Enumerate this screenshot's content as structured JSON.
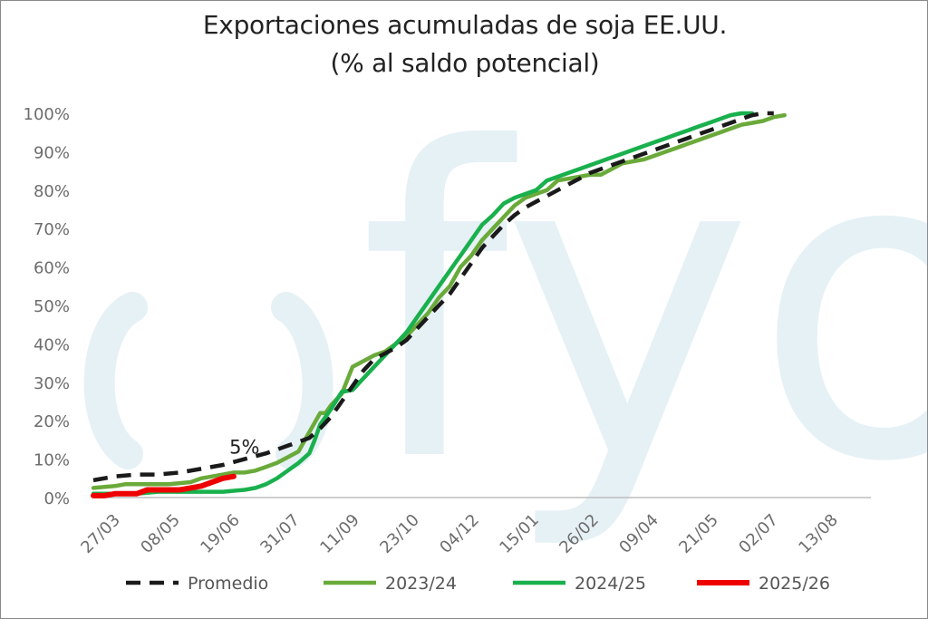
{
  "chart_data": {
    "type": "line",
    "title": "Exportaciones acumuladas de soja EE.UU.",
    "subtitle": "(% al saldo potencial)",
    "watermark": "fyo",
    "xlabel": "",
    "ylabel": "",
    "x_ticks": [
      "27/03",
      "08/05",
      "19/06",
      "31/07",
      "11/09",
      "23/10",
      "04/12",
      "15/01",
      "26/02",
      "09/04",
      "21/05",
      "02/07",
      "13/08"
    ],
    "ylim": [
      0,
      100
    ],
    "y_ticks": [
      "0%",
      "10%",
      "20%",
      "30%",
      "40%",
      "50%",
      "60%",
      "70%",
      "80%",
      "90%",
      "100%"
    ],
    "x_unit": "weeks",
    "x_range": [
      0,
      72
    ],
    "grid": false,
    "legend_position": "bottom",
    "annotations": [
      {
        "text": "5%",
        "x": 14,
        "y": 10.5
      }
    ],
    "series": [
      {
        "name": "Promedio",
        "color": "#1a1a1a",
        "style": "dashed",
        "points": [
          [
            0,
            4.5
          ],
          [
            2,
            5.5
          ],
          [
            4,
            6
          ],
          [
            6,
            6
          ],
          [
            8,
            6.5
          ],
          [
            10,
            7.5
          ],
          [
            12,
            8.5
          ],
          [
            14,
            10
          ],
          [
            16,
            11.5
          ],
          [
            18,
            13.5
          ],
          [
            20,
            15.5
          ],
          [
            21,
            18
          ],
          [
            22,
            21
          ],
          [
            23,
            25
          ],
          [
            24,
            29
          ],
          [
            25,
            33
          ],
          [
            26,
            36
          ],
          [
            27,
            37.5
          ],
          [
            28,
            39
          ],
          [
            29,
            41
          ],
          [
            30,
            44
          ],
          [
            31,
            47
          ],
          [
            32,
            50
          ],
          [
            33,
            53
          ],
          [
            34,
            57
          ],
          [
            35,
            61
          ],
          [
            36,
            65
          ],
          [
            37,
            68
          ],
          [
            38,
            71
          ],
          [
            39,
            73.5
          ],
          [
            40,
            75.5
          ],
          [
            41,
            77
          ],
          [
            42,
            78.5
          ],
          [
            43,
            80
          ],
          [
            44,
            81.5
          ],
          [
            45,
            83
          ],
          [
            46,
            84.5
          ],
          [
            47,
            85.5
          ],
          [
            48,
            86.5
          ],
          [
            49,
            87.5
          ],
          [
            50,
            88.5
          ],
          [
            51,
            89.5
          ],
          [
            52,
            90.5
          ],
          [
            53,
            91.5
          ],
          [
            54,
            92.5
          ],
          [
            55,
            93.5
          ],
          [
            56,
            94.5
          ],
          [
            57,
            95.5
          ],
          [
            58,
            96.5
          ],
          [
            59,
            97.5
          ],
          [
            60,
            98.5
          ],
          [
            61,
            99.5
          ],
          [
            62,
            100
          ],
          [
            63,
            100
          ]
        ]
      },
      {
        "name": "2023/24",
        "color": "#6aaa3a",
        "style": "solid",
        "points": [
          [
            0,
            2.5
          ],
          [
            2,
            3
          ],
          [
            3,
            3.5
          ],
          [
            5,
            3.5
          ],
          [
            7,
            3.5
          ],
          [
            9,
            4
          ],
          [
            10,
            5
          ],
          [
            11,
            5.5
          ],
          [
            12,
            6
          ],
          [
            13,
            6.5
          ],
          [
            14,
            6.5
          ],
          [
            15,
            7
          ],
          [
            16,
            8
          ],
          [
            17,
            9
          ],
          [
            18,
            10.5
          ],
          [
            19,
            12
          ],
          [
            20,
            17
          ],
          [
            21,
            22
          ],
          [
            21.5,
            22
          ],
          [
            22,
            24
          ],
          [
            23,
            27
          ],
          [
            24,
            34
          ],
          [
            25,
            35.5
          ],
          [
            26,
            37
          ],
          [
            27,
            38
          ],
          [
            28,
            40
          ],
          [
            29,
            42
          ],
          [
            30,
            45
          ],
          [
            31,
            48
          ],
          [
            32,
            52
          ],
          [
            33,
            55
          ],
          [
            34,
            60
          ],
          [
            35,
            63
          ],
          [
            36,
            67
          ],
          [
            37,
            70
          ],
          [
            38,
            73
          ],
          [
            39,
            76
          ],
          [
            40,
            78
          ],
          [
            41,
            79
          ],
          [
            42,
            80
          ],
          [
            43,
            82.5
          ],
          [
            44,
            83
          ],
          [
            45,
            83.5
          ],
          [
            46,
            84
          ],
          [
            47,
            84
          ],
          [
            48,
            85.5
          ],
          [
            49,
            87
          ],
          [
            50,
            87.5
          ],
          [
            51,
            88
          ],
          [
            52,
            89
          ],
          [
            53,
            90
          ],
          [
            54,
            91
          ],
          [
            55,
            92
          ],
          [
            56,
            93
          ],
          [
            57,
            94
          ],
          [
            58,
            95
          ],
          [
            59,
            96
          ],
          [
            60,
            97
          ],
          [
            61,
            97.5
          ],
          [
            62,
            98
          ],
          [
            63,
            99
          ],
          [
            64,
            99.5
          ]
        ]
      },
      {
        "name": "2024/25",
        "color": "#19b04d",
        "style": "solid",
        "points": [
          [
            0,
            1
          ],
          [
            4,
            1
          ],
          [
            6,
            1.5
          ],
          [
            8,
            1.5
          ],
          [
            10,
            1.5
          ],
          [
            12,
            1.5
          ],
          [
            14,
            2
          ],
          [
            15,
            2.5
          ],
          [
            16,
            3.5
          ],
          [
            17,
            5
          ],
          [
            18,
            7
          ],
          [
            19,
            9
          ],
          [
            20,
            11.5
          ],
          [
            20.5,
            15
          ],
          [
            21,
            19
          ],
          [
            22,
            23
          ],
          [
            23,
            27.5
          ],
          [
            24,
            28
          ],
          [
            25,
            31
          ],
          [
            26,
            34
          ],
          [
            27,
            37
          ],
          [
            28,
            40
          ],
          [
            29,
            43
          ],
          [
            30,
            47
          ],
          [
            31,
            51
          ],
          [
            32,
            55
          ],
          [
            33,
            59
          ],
          [
            34,
            63
          ],
          [
            35,
            67
          ],
          [
            36,
            71
          ],
          [
            37,
            73.5
          ],
          [
            38,
            76.5
          ],
          [
            39,
            78
          ],
          [
            40,
            79
          ],
          [
            41,
            80
          ],
          [
            42,
            82.5
          ],
          [
            43,
            83.5
          ],
          [
            44,
            84.5
          ],
          [
            45,
            85.5
          ],
          [
            46,
            86.5
          ],
          [
            47,
            87.5
          ],
          [
            48,
            88.5
          ],
          [
            49,
            89.5
          ],
          [
            50,
            90.5
          ],
          [
            51,
            91.5
          ],
          [
            52,
            92.5
          ],
          [
            53,
            93.5
          ],
          [
            54,
            94.5
          ],
          [
            55,
            95.5
          ],
          [
            56,
            96.5
          ],
          [
            57,
            97.5
          ],
          [
            58,
            98.5
          ],
          [
            59,
            99.5
          ],
          [
            60,
            100
          ],
          [
            61,
            100
          ]
        ]
      },
      {
        "name": "2025/26",
        "color": "#ee0000",
        "style": "solid",
        "points": [
          [
            0,
            0.5
          ],
          [
            1,
            0.5
          ],
          [
            2,
            1
          ],
          [
            3,
            1
          ],
          [
            4,
            1
          ],
          [
            5,
            2
          ],
          [
            6,
            2
          ],
          [
            7,
            2
          ],
          [
            8,
            2
          ],
          [
            9,
            2.5
          ],
          [
            10,
            3
          ],
          [
            11,
            4
          ],
          [
            12,
            5
          ],
          [
            13,
            5.5
          ]
        ]
      }
    ]
  }
}
